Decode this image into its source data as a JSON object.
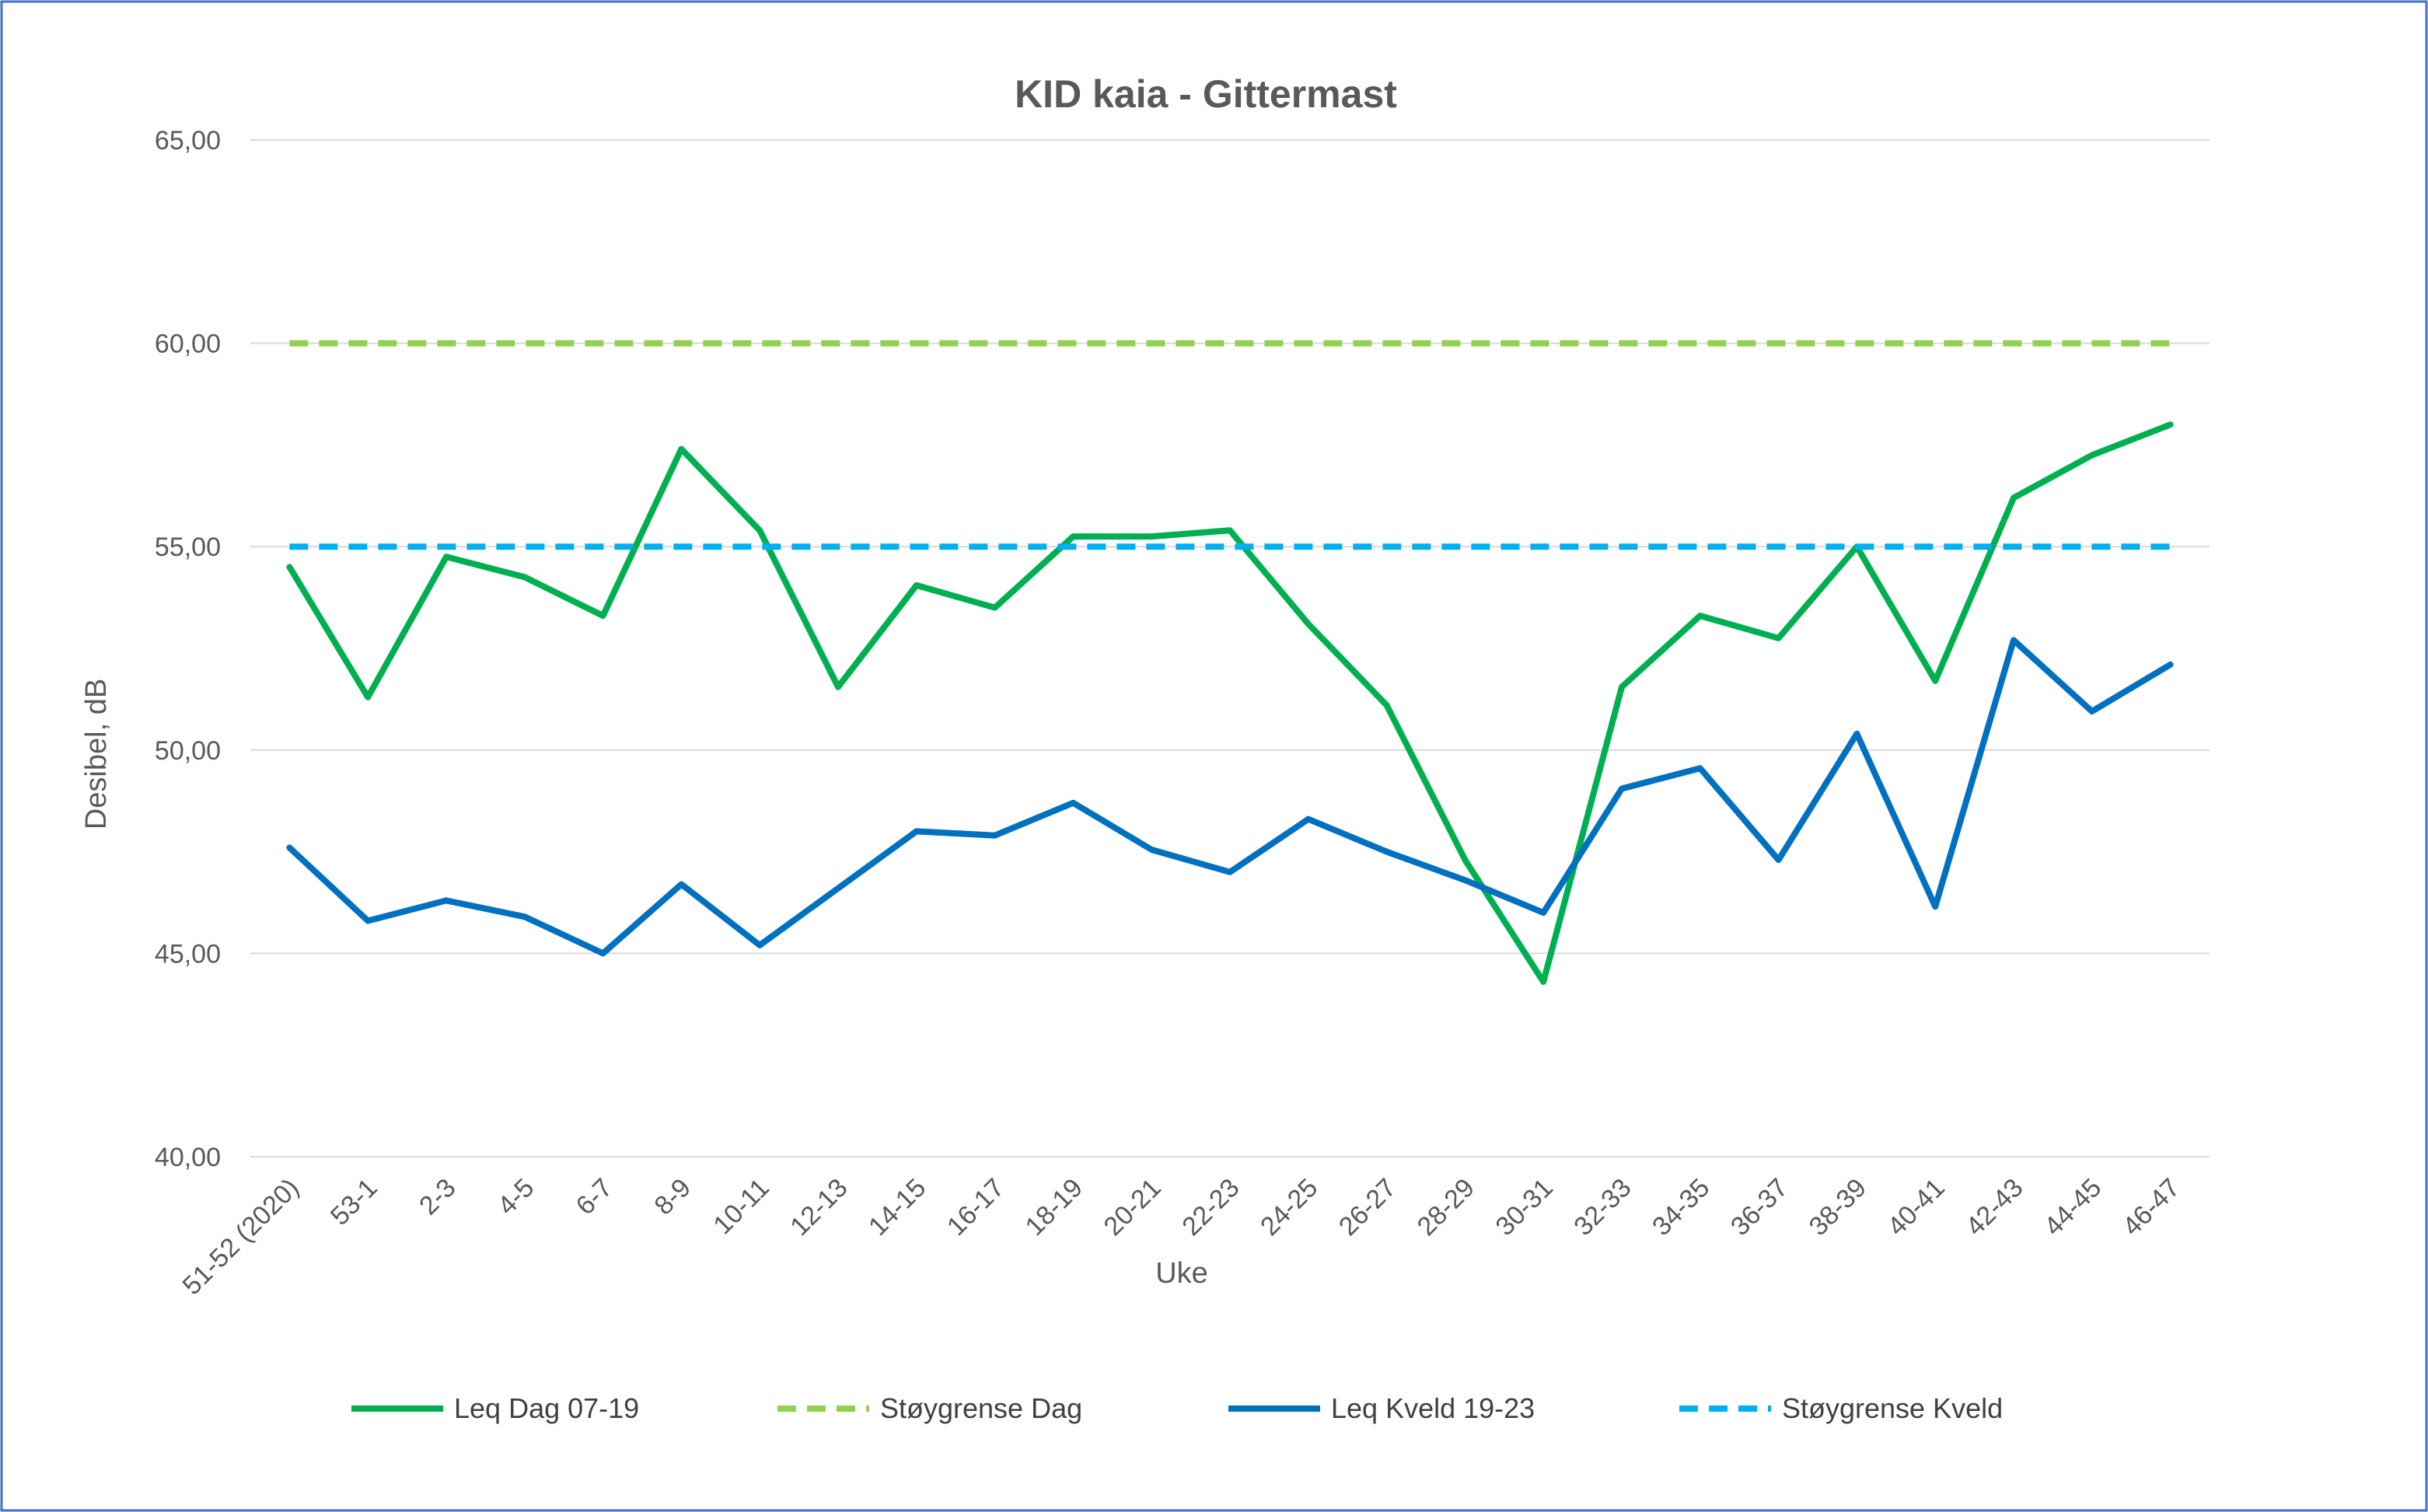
{
  "chart_data": {
    "type": "line",
    "title": "KID kaia - Gittermast",
    "xlabel": "Uke",
    "ylabel": "Desibel, dB",
    "ylim": [
      40,
      65
    ],
    "yticks": [
      "40,00",
      "45,00",
      "50,00",
      "55,00",
      "60,00",
      "65,00"
    ],
    "grid": true,
    "legend_position": "bottom",
    "categories": [
      "51-52 (2020)",
      "53-1",
      "2-3",
      "4-5",
      "6-7",
      "8-9",
      "10-11",
      "12-13",
      "14-15",
      "16-17",
      "18-19",
      "20-21",
      "22-23",
      "24-25",
      "26-27",
      "28-29",
      "30-31",
      "32-33",
      "34-35",
      "36-37",
      "38-39",
      "40-41",
      "42-43",
      "44-45",
      "46-47"
    ],
    "series": [
      {
        "name": "Leq Dag 07-19",
        "color": "#00B050",
        "dash": false,
        "values": [
          54.5,
          51.3,
          54.75,
          54.25,
          53.3,
          57.4,
          55.4,
          51.55,
          54.05,
          53.5,
          55.25,
          55.25,
          55.4,
          53.1,
          51.1,
          47.3,
          44.3,
          51.55,
          53.3,
          52.75,
          55.0,
          51.7,
          56.2,
          57.25,
          58.0
        ]
      },
      {
        "name": "Støygrense Dag",
        "color": "#92D050",
        "dash": true,
        "values": [
          60,
          60,
          60,
          60,
          60,
          60,
          60,
          60,
          60,
          60,
          60,
          60,
          60,
          60,
          60,
          60,
          60,
          60,
          60,
          60,
          60,
          60,
          60,
          60,
          60
        ]
      },
      {
        "name": "Leq Kveld 19-23",
        "color": "#0070C0",
        "dash": false,
        "values": [
          47.6,
          45.8,
          46.3,
          45.9,
          45.0,
          46.7,
          45.2,
          46.6,
          48.0,
          47.9,
          48.7,
          47.55,
          47.0,
          48.3,
          47.5,
          46.8,
          46.0,
          49.05,
          49.55,
          47.3,
          50.4,
          46.15,
          52.7,
          50.95,
          52.1
        ]
      },
      {
        "name": "Støygrense Kveld",
        "color": "#00B0F0",
        "dash": true,
        "values": [
          55,
          55,
          55,
          55,
          55,
          55,
          55,
          55,
          55,
          55,
          55,
          55,
          55,
          55,
          55,
          55,
          55,
          55,
          55,
          55,
          55,
          55,
          55,
          55,
          55
        ]
      }
    ],
    "frame_color": "#4472C4",
    "grid_color": "#D9D9D9"
  }
}
